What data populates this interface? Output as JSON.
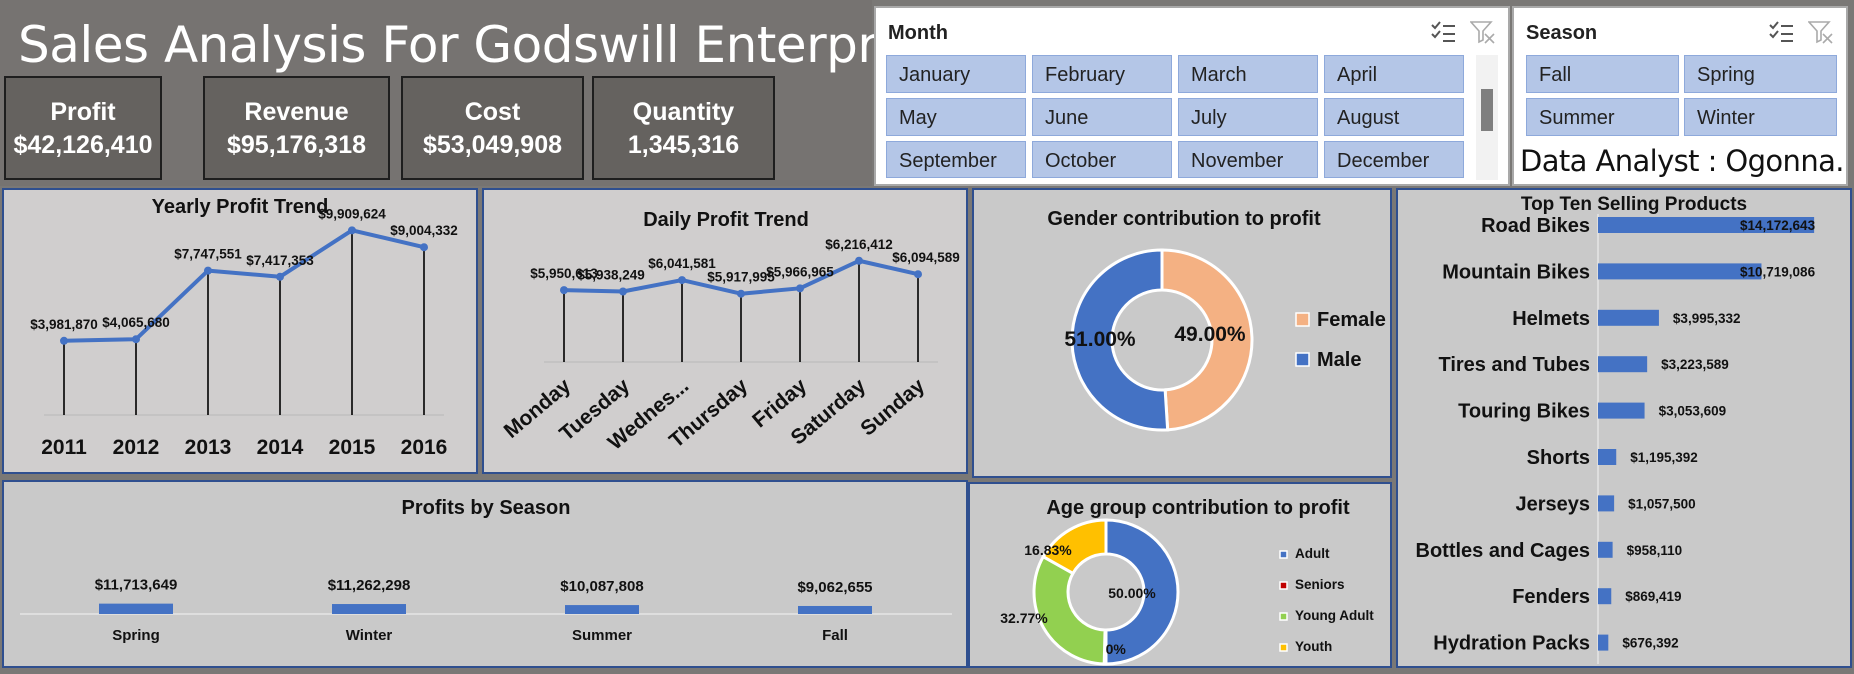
{
  "header": {
    "title": "Sales Analysis For Godswill Enterprise"
  },
  "kpis": [
    {
      "label": "Profit",
      "value": "$42,126,410"
    },
    {
      "label": "Revenue",
      "value": "$95,176,318"
    },
    {
      "label": "Cost",
      "value": "$53,049,908"
    },
    {
      "label": "Quantity",
      "value": "1,345,316"
    }
  ],
  "month_slicer": {
    "title": "Month",
    "items": [
      "January",
      "February",
      "March",
      "April",
      "May",
      "June",
      "July",
      "August",
      "September",
      "October",
      "November",
      "December"
    ]
  },
  "season_slicer": {
    "title": "Season",
    "items": [
      "Fall",
      "Spring",
      "Summer",
      "Winter"
    ]
  },
  "analyst_credit": "Data Analyst : Ogonna. U",
  "colors": {
    "blue": "#4472c4",
    "orange": "#f4b183",
    "red": "#c00000",
    "green": "#92d050",
    "yellow": "#ffc000",
    "panel_bg": "#d0cece",
    "panel_bg_alt": "#c9c9c9"
  },
  "chart_data": [
    {
      "id": "yearly",
      "type": "line",
      "title": "Yearly Profit Trend",
      "categories": [
        "2011",
        "2012",
        "2013",
        "2014",
        "2015",
        "2016"
      ],
      "values": [
        3981870,
        4065680,
        7747551,
        7417353,
        9909624,
        9004332
      ],
      "labels": [
        "$3,981,870",
        "$4,065,680",
        "$7,747,551",
        "$7,417,353",
        "$9,909,624",
        "$9,004,332"
      ],
      "ylim": [
        0,
        11000000
      ]
    },
    {
      "id": "daily",
      "type": "line",
      "title": "Daily Profit Trend",
      "categories": [
        "Monday",
        "Tuesday",
        "Wednes...",
        "Thursday",
        "Friday",
        "Saturday",
        "Sunday"
      ],
      "values": [
        5950613,
        5938249,
        6041581,
        5917995,
        5966965,
        6216412,
        6094589
      ],
      "labels": [
        "$5,950,613",
        "$5,938,249",
        "$6,041,581",
        "$5,917,995",
        "$5,966,965",
        "$6,216,412",
        "$6,094,589"
      ],
      "ylim": [
        5300000,
        6350000
      ]
    },
    {
      "id": "gender",
      "type": "pie",
      "title": "Gender contribution to profit",
      "slices": [
        {
          "name": "Female",
          "value": 49.0,
          "label": "49.00%"
        },
        {
          "name": "Male",
          "value": 51.0,
          "label": "51.00%"
        }
      ]
    },
    {
      "id": "season",
      "type": "bar",
      "title": "Profits by Season",
      "categories": [
        "Spring",
        "Winter",
        "Summer",
        "Fall"
      ],
      "values": [
        11713649,
        11262298,
        10087808,
        9062655
      ],
      "labels": [
        "$11,713,649",
        "$11,262,298",
        "$10,087,808",
        "$9,062,655"
      ],
      "ylim": [
        0,
        40000000
      ]
    },
    {
      "id": "age",
      "type": "pie",
      "title": "Age group contribution to profit",
      "slices": [
        {
          "name": "Adult",
          "value": 50.0,
          "label": "50.00%"
        },
        {
          "name": "Seniors",
          "value": 0.4,
          "label": "0.40%"
        },
        {
          "name": "Young Adult",
          "value": 32.77,
          "label": "32.77%"
        },
        {
          "name": "Youth",
          "value": 16.83,
          "label": "16.83%"
        }
      ]
    },
    {
      "id": "products",
      "type": "bar",
      "title": "Top Ten Selling Products",
      "categories": [
        "Road Bikes",
        "Mountain Bikes",
        "Helmets",
        "Tires and Tubes",
        "Touring Bikes",
        "Shorts",
        "Jerseys",
        "Bottles and Cages",
        "Fenders",
        "Hydration Packs"
      ],
      "values": [
        14172643,
        10719086,
        3995332,
        3223589,
        3053609,
        1195392,
        1057500,
        958110,
        869419,
        676392
      ],
      "labels": [
        "$14,172,643",
        "$10,719,086",
        "$3,995,332",
        "$3,223,589",
        "$3,053,609",
        "$1,195,392",
        "$1,057,500",
        "$958,110",
        "$869,419",
        "$676,392"
      ],
      "xlim": [
        0,
        16000000
      ]
    }
  ]
}
